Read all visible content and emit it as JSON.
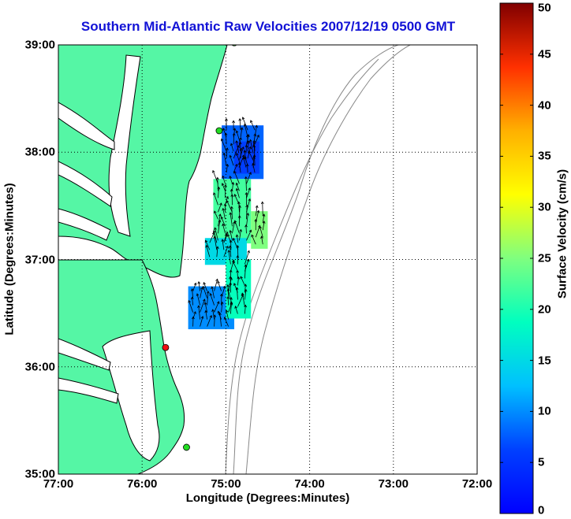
{
  "title": "Southern Mid-Atlantic Raw Velocities 2007/12/19 0500 GMT",
  "xlabel": "Longitude (Degrees:Minutes)",
  "ylabel": "Latitude (Degrees:Minutes)",
  "colorbar_label": "Surface Velocity (cm/s)",
  "colors": {
    "land": "#55f6a5",
    "coastline": "#000000",
    "bathymetry": "#888888",
    "grid": "#000000",
    "title": "#1212d6",
    "station_green": "#22dd22",
    "station_red": "#ee1111"
  },
  "map": {
    "lon_range": [
      -77.0,
      -72.0
    ],
    "lat_range": [
      35.0,
      39.0
    ],
    "x_ticks": [
      {
        "value": -77,
        "label": "77:00"
      },
      {
        "value": -76,
        "label": "76:00"
      },
      {
        "value": -75,
        "label": "75:00"
      },
      {
        "value": -74,
        "label": "74:00"
      },
      {
        "value": -73,
        "label": "73:00"
      },
      {
        "value": -72,
        "label": "72:00"
      }
    ],
    "y_ticks": [
      {
        "value": 35,
        "label": "35:00"
      },
      {
        "value": 36,
        "label": "36:00"
      },
      {
        "value": 37,
        "label": "37:00"
      },
      {
        "value": 38,
        "label": "38:00"
      },
      {
        "value": 39,
        "label": "39:00"
      }
    ],
    "grid": "dotted",
    "stations": [
      {
        "lon": -74.9,
        "lat": 39.02,
        "color": "green"
      },
      {
        "lon": -75.08,
        "lat": 38.2,
        "color": "green"
      },
      {
        "lon": -75.72,
        "lat": 36.18,
        "color": "red"
      },
      {
        "lon": -75.47,
        "lat": 35.25,
        "color": "green"
      }
    ]
  },
  "chart_data": {
    "type": "heatmap",
    "title": "Southern Mid-Atlantic Raw Velocities 2007/12/19 0500 GMT",
    "xlabel": "Longitude (Degrees:Minutes)",
    "ylabel": "Latitude (Degrees:Minutes)",
    "colorbar": {
      "label": "Surface Velocity (cm/s)",
      "range": [
        0,
        50
      ],
      "colormap": "jet",
      "ticks": [
        0,
        5,
        10,
        15,
        20,
        25,
        30,
        35,
        40,
        45,
        50
      ]
    },
    "regions": [
      {
        "lon_min": -75.05,
        "lon_max": -74.55,
        "lat_min": 37.75,
        "lat_max": 38.25,
        "speed": 8
      },
      {
        "lon_min": -74.9,
        "lon_max": -74.6,
        "lat_min": 37.8,
        "lat_max": 38.1,
        "speed": 6
      },
      {
        "lon_min": -75.15,
        "lon_max": -74.7,
        "lat_min": 37.15,
        "lat_max": 37.75,
        "speed": 22
      },
      {
        "lon_min": -74.7,
        "lon_max": -74.5,
        "lat_min": 37.1,
        "lat_max": 37.45,
        "speed": 25
      },
      {
        "lon_min": -75.25,
        "lon_max": -74.75,
        "lat_min": 36.95,
        "lat_max": 37.2,
        "speed": 15
      },
      {
        "lon_min": -75.45,
        "lon_max": -74.9,
        "lat_min": 36.35,
        "lat_max": 36.75,
        "speed": 10
      },
      {
        "lon_min": -75.0,
        "lon_max": -74.7,
        "lat_min": 36.45,
        "lat_max": 37.0,
        "speed": 19
      }
    ]
  }
}
